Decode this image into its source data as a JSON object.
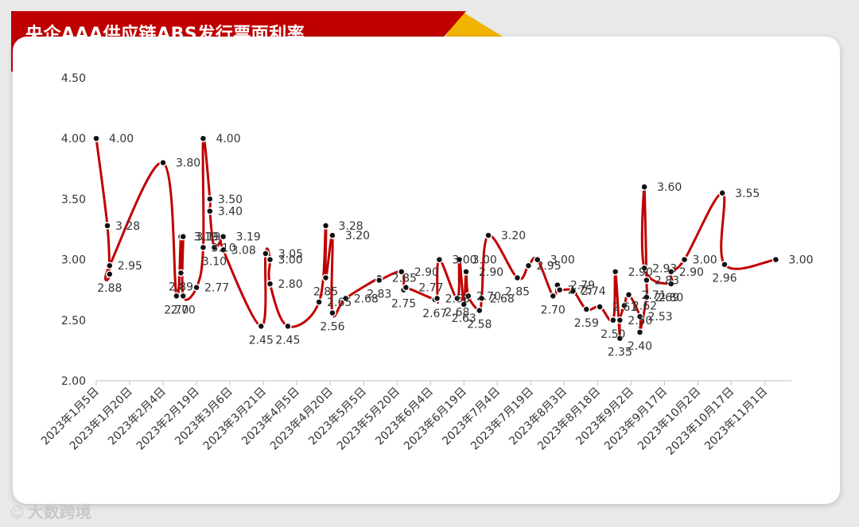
{
  "title": "央企AAA供应链ABS发行票面利率",
  "watermark": "大数跨境",
  "colors": {
    "line": "#c00000",
    "banner": "#c00000",
    "accent": "#f0b400",
    "point": "#111111"
  },
  "chart_data": {
    "type": "line",
    "title": "央企AAA供应链ABS发行票面利率",
    "xlabel": "",
    "ylabel": "",
    "ylim": [
      2.0,
      4.5
    ],
    "yticks": [
      "4.50",
      "4.00",
      "3.50",
      "3.00",
      "2.50",
      "2.00"
    ],
    "xlim": [
      "2023-01-05",
      "2023-11-13"
    ],
    "xticks": [
      "2023年1月5日",
      "2023年1月20日",
      "2023年2月4日",
      "2023年2月19日",
      "2023年3月6日",
      "2023年3月21日",
      "2023年4月5日",
      "2023年4月20日",
      "2023年5月5日",
      "2023年5月20日",
      "2023年6月4日",
      "2023年6月19日",
      "2023年7月4日",
      "2023年7月19日",
      "2023年8月3日",
      "2023年8月18日",
      "2023年9月2日",
      "2023年9月17日",
      "2023年10月2日",
      "2023年10月17日",
      "2023年11月1日"
    ],
    "grid": false,
    "legend": "none",
    "points": [
      {
        "date": "2023-01-05",
        "value": 4.0,
        "label": "4.00"
      },
      {
        "date": "2023-01-10",
        "value": 3.28,
        "label": "3.28"
      },
      {
        "date": "2023-01-11",
        "value": 2.88,
        "label": "2.88"
      },
      {
        "date": "2023-01-11",
        "value": 2.95,
        "label": "2.95"
      },
      {
        "date": "2023-02-04",
        "value": 3.8,
        "label": "3.80"
      },
      {
        "date": "2023-02-10",
        "value": 2.7,
        "label": "2.70"
      },
      {
        "date": "2023-02-12",
        "value": 3.19,
        "label": "3.19"
      },
      {
        "date": "2023-02-12",
        "value": 2.89,
        "label": "2.89"
      },
      {
        "date": "2023-02-13",
        "value": 3.19,
        "label": "3.19"
      },
      {
        "date": "2023-02-13",
        "value": 2.7,
        "label": "2.70"
      },
      {
        "date": "2023-02-19",
        "value": 2.77,
        "label": "2.77"
      },
      {
        "date": "2023-02-22",
        "value": 3.1,
        "label": "3.10"
      },
      {
        "date": "2023-02-22",
        "value": 4.0,
        "label": "4.00"
      },
      {
        "date": "2023-02-25",
        "value": 3.5,
        "label": "3.50"
      },
      {
        "date": "2023-02-25",
        "value": 3.4,
        "label": "3.40"
      },
      {
        "date": "2023-02-27",
        "value": 3.1,
        "label": "3.10"
      },
      {
        "date": "2023-03-03",
        "value": 3.19,
        "label": "3.19"
      },
      {
        "date": "2023-03-03",
        "value": 3.08,
        "label": "3.08"
      },
      {
        "date": "2023-03-20",
        "value": 2.45,
        "label": "2.45"
      },
      {
        "date": "2023-03-22",
        "value": 3.05,
        "label": "3.05"
      },
      {
        "date": "2023-03-24",
        "value": 3.0,
        "label": "3.00"
      },
      {
        "date": "2023-03-24",
        "value": 2.8,
        "label": "2.80"
      },
      {
        "date": "2023-04-01",
        "value": 2.45,
        "label": "2.45"
      },
      {
        "date": "2023-04-15",
        "value": 2.65,
        "label": "2.65"
      },
      {
        "date": "2023-04-18",
        "value": 3.28,
        "label": "3.28"
      },
      {
        "date": "2023-04-18",
        "value": 2.85,
        "label": "2.85"
      },
      {
        "date": "2023-04-21",
        "value": 3.2,
        "label": "3.20"
      },
      {
        "date": "2023-04-21",
        "value": 2.56,
        "label": "2.56"
      },
      {
        "date": "2023-04-27",
        "value": 2.68,
        "label": "2.68"
      },
      {
        "date": "2023-05-12",
        "value": 2.85,
        "label": "2.85"
      },
      {
        "date": "2023-05-12",
        "value": 2.83,
        "label": "2.83"
      },
      {
        "date": "2023-05-22",
        "value": 2.9,
        "label": "2.90"
      },
      {
        "date": "2023-05-23",
        "value": 2.75,
        "label": "2.75"
      },
      {
        "date": "2023-05-24",
        "value": 2.77,
        "label": "2.77"
      },
      {
        "date": "2023-06-06",
        "value": 2.67,
        "label": "2.67"
      },
      {
        "date": "2023-06-07",
        "value": 2.68,
        "label": "2.68"
      },
      {
        "date": "2023-06-08",
        "value": 3.0,
        "label": "3.00"
      },
      {
        "date": "2023-06-16",
        "value": 2.68,
        "label": "2.68"
      },
      {
        "date": "2023-06-17",
        "value": 3.0,
        "label": "3.00"
      },
      {
        "date": "2023-06-19",
        "value": 2.63,
        "label": "2.63"
      },
      {
        "date": "2023-06-20",
        "value": 2.9,
        "label": "2.90"
      },
      {
        "date": "2023-06-21",
        "value": 2.7,
        "label": "2.70"
      },
      {
        "date": "2023-06-26",
        "value": 2.58,
        "label": "2.58"
      },
      {
        "date": "2023-06-27",
        "value": 2.68,
        "label": "2.68"
      },
      {
        "date": "2023-06-30",
        "value": 3.2,
        "label": "3.20"
      },
      {
        "date": "2023-07-13",
        "value": 2.85,
        "label": "2.85"
      },
      {
        "date": "2023-07-18",
        "value": 2.95,
        "label": "2.95"
      },
      {
        "date": "2023-07-22",
        "value": 3.0,
        "label": "3.00"
      },
      {
        "date": "2023-07-29",
        "value": 2.7,
        "label": "2.70"
      },
      {
        "date": "2023-07-31",
        "value": 2.79,
        "label": "2.79"
      },
      {
        "date": "2023-08-01",
        "value": 2.75,
        "label": "2.75"
      },
      {
        "date": "2023-08-07",
        "value": 2.74,
        "label": "2.74"
      },
      {
        "date": "2023-08-13",
        "value": 2.59,
        "label": "2.59"
      },
      {
        "date": "2023-08-19",
        "value": 2.61,
        "label": "2.61"
      },
      {
        "date": "2023-08-25",
        "value": 2.5,
        "label": "2.50"
      },
      {
        "date": "2023-08-26",
        "value": 2.9,
        "label": "2.90"
      },
      {
        "date": "2023-08-28",
        "value": 2.35,
        "label": "2.35"
      },
      {
        "date": "2023-08-28",
        "value": 2.5,
        "label": "2.50"
      },
      {
        "date": "2023-08-30",
        "value": 2.62,
        "label": "2.62"
      },
      {
        "date": "2023-09-01",
        "value": 2.71,
        "label": "2.71"
      },
      {
        "date": "2023-09-06",
        "value": 2.53,
        "label": "2.53"
      },
      {
        "date": "2023-09-06",
        "value": 2.4,
        "label": "2.40"
      },
      {
        "date": "2023-09-09",
        "value": 2.69,
        "label": "2.69"
      },
      {
        "date": "2023-09-09",
        "value": 2.83,
        "label": "2.83"
      },
      {
        "date": "2023-09-08",
        "value": 3.6,
        "label": "3.60"
      },
      {
        "date": "2023-09-08",
        "value": 2.93,
        "label": "2.93"
      },
      {
        "date": "2023-09-20",
        "value": 2.8,
        "label": "2.80"
      },
      {
        "date": "2023-09-20",
        "value": 2.9,
        "label": "2.90"
      },
      {
        "date": "2023-09-26",
        "value": 3.0,
        "label": "3.00"
      },
      {
        "date": "2023-10-13",
        "value": 3.55,
        "label": "3.55"
      },
      {
        "date": "2023-10-14",
        "value": 2.96,
        "label": "2.96"
      },
      {
        "date": "2023-11-06",
        "value": 3.0,
        "label": "3.00"
      }
    ]
  }
}
